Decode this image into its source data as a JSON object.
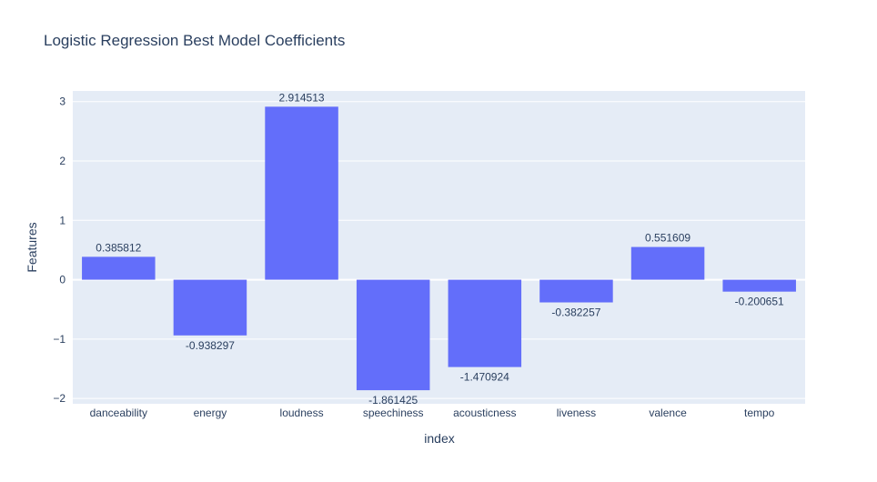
{
  "chart_data": {
    "type": "bar",
    "title": "Logistic Regression Best Model Coefficients",
    "xlabel": "index",
    "ylabel": "Features",
    "categories": [
      "danceability",
      "energy",
      "loudness",
      "speechiness",
      "acousticness",
      "liveness",
      "valence",
      "tempo"
    ],
    "values": [
      0.385812,
      -0.938297,
      2.914513,
      -1.861425,
      -1.470924,
      -0.382257,
      0.551609,
      -0.200651
    ],
    "value_labels": [
      "0.385812",
      "-0.938297",
      "2.914513",
      "-1.861425",
      "-1.470924",
      "-0.382257",
      "0.551609",
      "-0.200651"
    ],
    "yticks": [
      3,
      2,
      1,
      0,
      -1,
      -2
    ],
    "ytick_labels": [
      "3",
      "2",
      "1",
      "0",
      "−1",
      "−2"
    ],
    "ylim": [
      -2.09,
      3.18
    ],
    "grid": true,
    "colors": {
      "bar": "#636efa",
      "plot_bg": "#e5ecf6",
      "grid": "#ffffff",
      "text": "#2a3f5f"
    }
  }
}
